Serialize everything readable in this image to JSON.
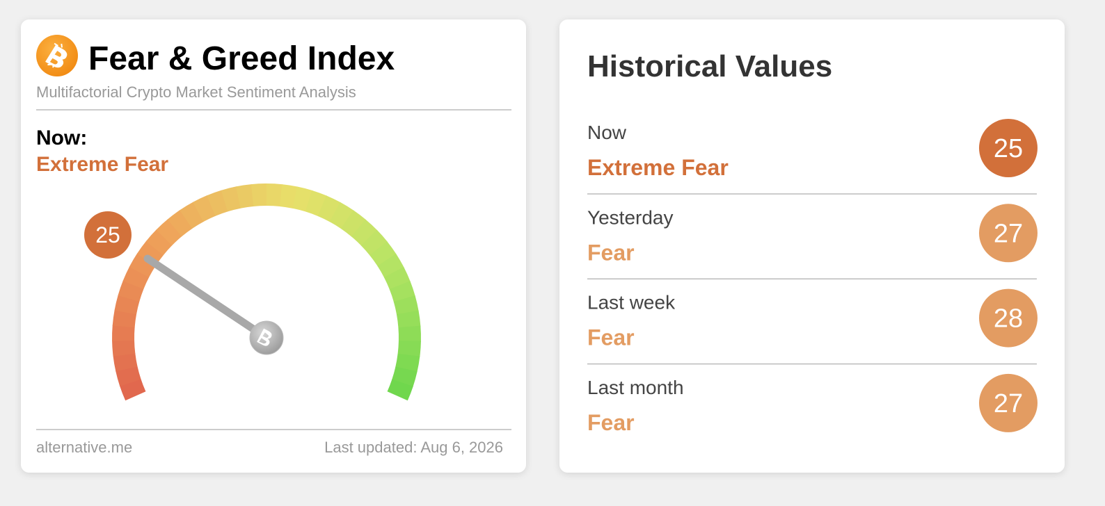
{
  "gauge": {
    "title": "Fear & Greed Index",
    "subtitle": "Multifactorial Crypto Market Sentiment Analysis",
    "now_label": "Now:",
    "classification": "Extreme Fear",
    "color": "#d2703a",
    "value": 25,
    "source": "alternative.me",
    "updated": "Last updated: Aug 6, 2026"
  },
  "historical": {
    "title": "Historical Values",
    "rows": [
      {
        "label": "Now",
        "classification": "Extreme Fear",
        "value": 25,
        "color": "#d2703a"
      },
      {
        "label": "Yesterday",
        "classification": "Fear",
        "value": 27,
        "color": "#e39c62"
      },
      {
        "label": "Last week",
        "classification": "Fear",
        "value": 28,
        "color": "#e39c62"
      },
      {
        "label": "Last month",
        "classification": "Fear",
        "value": 27,
        "color": "#e39c62"
      }
    ]
  }
}
